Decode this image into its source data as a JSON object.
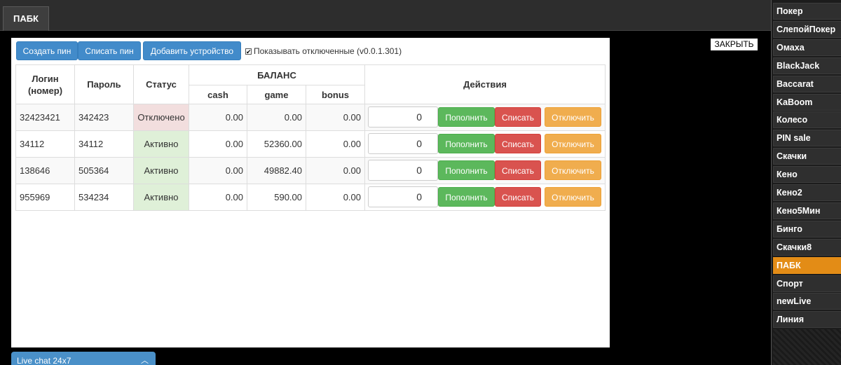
{
  "tabbar": {
    "active_tab": "ПАБК"
  },
  "sidebar": {
    "items": [
      {
        "label": "Покер"
      },
      {
        "label": "СлепойПокер"
      },
      {
        "label": "Омаха"
      },
      {
        "label": "BlackJack"
      },
      {
        "label": "Baccarat"
      },
      {
        "label": "KaBoom"
      },
      {
        "label": "Колесо"
      },
      {
        "label": "PIN sale"
      },
      {
        "label": "Скачки"
      },
      {
        "label": "Кено"
      },
      {
        "label": "Кено2"
      },
      {
        "label": "Кено5Мин"
      },
      {
        "label": "Бинго"
      },
      {
        "label": "Скачки8"
      },
      {
        "label": "ПАБК"
      },
      {
        "label": "Спорт"
      },
      {
        "label": "newLive"
      },
      {
        "label": "Линия"
      }
    ],
    "active_index": 14
  },
  "close_label": "ЗАКРЫТЬ",
  "toolbar": {
    "create_pin": "Создать пин",
    "writeoff_pin": "Списать пин",
    "add_device": "Добавить устройство",
    "show_disabled": "Показывать отключенные (v0.0.1.301)",
    "show_disabled_checked": true
  },
  "table": {
    "headers": {
      "login": "Логин (номер)",
      "password": "Пароль",
      "status": "Статус",
      "balance": "БАЛАНС",
      "cash": "cash",
      "game": "game",
      "bonus": "bonus",
      "actions": "Действия"
    },
    "rows": [
      {
        "login": "32423421",
        "password": "342423",
        "status": "Отключено",
        "status_type": "off",
        "cash": "0.00",
        "game": "0.00",
        "bonus": "0.00",
        "amount": "0",
        "topup": "Пополнить",
        "writeoff": "Списать",
        "disable": "Отключить"
      },
      {
        "login": "34112",
        "password": "34112",
        "status": "Активно",
        "status_type": "on",
        "cash": "0.00",
        "game": "52360.00",
        "bonus": "0.00",
        "amount": "0",
        "topup": "Пополнить",
        "writeoff": "Списать",
        "disable": "Отключить"
      },
      {
        "login": "138646",
        "password": "505364",
        "status": "Активно",
        "status_type": "on",
        "cash": "0.00",
        "game": "49882.40",
        "bonus": "0.00",
        "amount": "0",
        "topup": "Пополнить",
        "writeoff": "Списать",
        "disable": "Отключить"
      },
      {
        "login": "955969",
        "password": "534234",
        "status": "Активно",
        "status_type": "on",
        "cash": "0.00",
        "game": "590.00",
        "bonus": "0.00",
        "amount": "0",
        "topup": "Пополнить",
        "writeoff": "Списать",
        "disable": "Отключить"
      }
    ]
  },
  "livechat": {
    "label": "Live chat 24x7"
  },
  "colors": {
    "accent_active": "#e38c16",
    "primary_blue": "#428bca",
    "success_green": "#5cb85c",
    "danger_red": "#d9534f",
    "warning_orange": "#f0ad4e"
  }
}
